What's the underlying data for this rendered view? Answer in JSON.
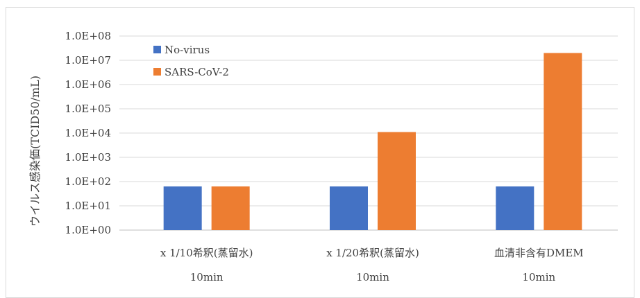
{
  "chart_data": {
    "type": "bar",
    "scale": "log",
    "ylabel": "ウイルス感染価(TCID50/mL)",
    "yticks": [
      "1.0E+00",
      "1.0E+01",
      "1.0E+02",
      "1.0E+03",
      "1.0E+04",
      "1.0E+05",
      "1.0E+06",
      "1.0E+07",
      "1.0E+08"
    ],
    "ylim": [
      1,
      100000000
    ],
    "categories": [
      {
        "line1": "x 1/10希釈(蒸留水)",
        "line2": "10min"
      },
      {
        "line1": "x 1/20希釈(蒸留水)",
        "line2": "10min"
      },
      {
        "line1": "血清非含有DMEM",
        "line2": "10min"
      }
    ],
    "series": [
      {
        "name": "No-virus",
        "color": "#4472c4",
        "values": [
          63,
          63,
          63
        ]
      },
      {
        "name": "SARS-CoV-2",
        "color": "#ed7d31",
        "values": [
          63,
          11000,
          20000000
        ]
      }
    ],
    "grid": true,
    "legend_position": "top-left"
  }
}
